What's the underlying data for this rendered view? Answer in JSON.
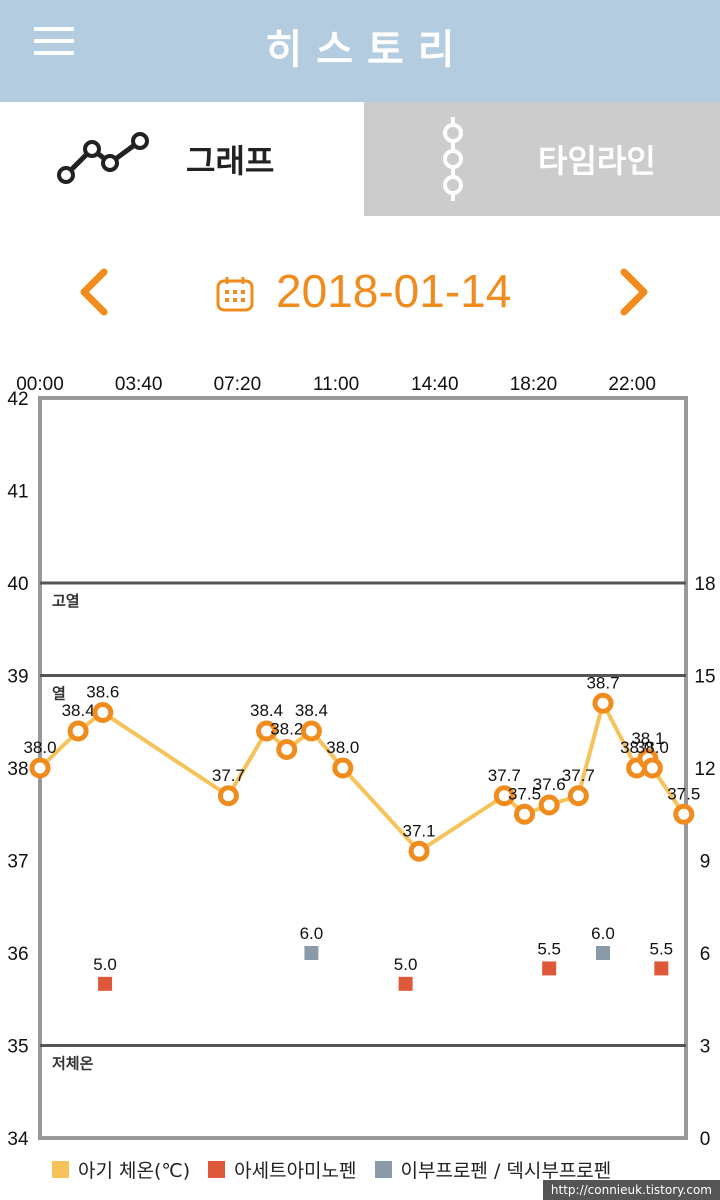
{
  "header": {
    "title": "히스토리"
  },
  "tabs": {
    "graph": {
      "label": "그래프"
    },
    "timeline": {
      "label": "타임라인"
    }
  },
  "date_nav": {
    "date": "2018-01-14"
  },
  "colors": {
    "header_bg": "#b3cce0",
    "accent": "#f08c1e",
    "temperature": "#f5c35a",
    "acetaminophen": "#e0583a",
    "ibuprofen": "#8a9aa8"
  },
  "chart_data": {
    "type": "line",
    "x_ticks": [
      "00:00",
      "03:40",
      "07:20",
      "11:00",
      "14:40",
      "18:20",
      "22:00"
    ],
    "x_range": [
      "00:00",
      "24:00"
    ],
    "y_left": {
      "ticks": [
        34,
        35,
        36,
        37,
        38,
        39,
        40,
        41,
        42
      ],
      "range": [
        34,
        42
      ]
    },
    "y_right": {
      "ticks": [
        0,
        3,
        6,
        9,
        12,
        15,
        18
      ],
      "range": [
        0,
        24
      ]
    },
    "reference_lines": [
      {
        "value": 40,
        "label": "고열"
      },
      {
        "value": 39,
        "label": "열"
      },
      {
        "value": 35,
        "label": "저체온"
      }
    ],
    "series": [
      {
        "name": "아기 체온(℃)",
        "axis": "left",
        "points": [
          {
            "x": "00:00",
            "y": 38.0,
            "label": "38.0"
          },
          {
            "x": "01:25",
            "y": 38.4,
            "label": "38.4"
          },
          {
            "x": "02:20",
            "y": 38.6,
            "label": "38.6"
          },
          {
            "x": "07:00",
            "y": 37.7,
            "label": "37.7"
          },
          {
            "x": "08:25",
            "y": 38.4,
            "label": "38.4"
          },
          {
            "x": "09:10",
            "y": 38.2,
            "label": "38.2"
          },
          {
            "x": "10:05",
            "y": 38.4,
            "label": "38.4"
          },
          {
            "x": "11:15",
            "y": 38.0,
            "label": "38.0"
          },
          {
            "x": "14:05",
            "y": 37.1,
            "label": "37.1"
          },
          {
            "x": "17:15",
            "y": 37.7,
            "label": "37.7"
          },
          {
            "x": "18:00",
            "y": 37.5,
            "label": "37.5"
          },
          {
            "x": "18:55",
            "y": 37.6,
            "label": "37.6"
          },
          {
            "x": "20:00",
            "y": 37.7,
            "label": "37.7"
          },
          {
            "x": "20:55",
            "y": 38.7,
            "label": "38.7"
          },
          {
            "x": "22:10",
            "y": 38.0,
            "label": "38.0"
          },
          {
            "x": "22:35",
            "y": 38.1,
            "label": "38.1"
          },
          {
            "x": "22:45",
            "y": 38.0,
            "label": "38.0"
          },
          {
            "x": "23:55",
            "y": 37.5,
            "label": "37.5"
          }
        ]
      },
      {
        "name": "아세트아미노펜",
        "axis": "right",
        "points": [
          {
            "x": "02:25",
            "y": 5.0,
            "label": "5.0"
          },
          {
            "x": "13:35",
            "y": 5.0,
            "label": "5.0"
          },
          {
            "x": "18:55",
            "y": 5.5,
            "label": "5.5"
          },
          {
            "x": "23:05",
            "y": 5.5,
            "label": "5.5"
          }
        ]
      },
      {
        "name": "이부프로펜 / 덱시부프로펜",
        "axis": "right",
        "points": [
          {
            "x": "10:05",
            "y": 6.0,
            "label": "6.0"
          },
          {
            "x": "20:55",
            "y": 6.0,
            "label": "6.0"
          }
        ]
      }
    ]
  },
  "legend": [
    {
      "label": "아기 체온(℃)",
      "color": "#f5c35a"
    },
    {
      "label": "아세트아미노펜",
      "color": "#e0583a"
    },
    {
      "label": "이부프로펜 / 덱시부프로펜",
      "color": "#8a9aa8"
    }
  ],
  "watermark": "http://connieuk.tistory.com"
}
